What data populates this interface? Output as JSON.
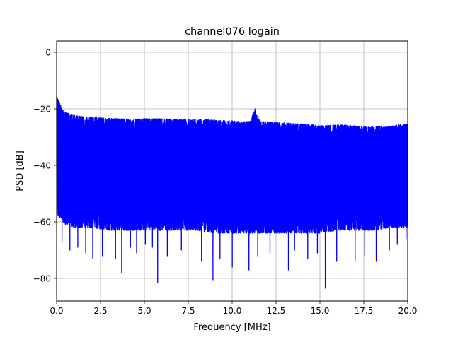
{
  "chart_data": {
    "type": "line",
    "title": "channel076 logain",
    "xlabel": "Frequency [MHz]",
    "ylabel": "PSD [dB]",
    "xlim": [
      0,
      20
    ],
    "ylim": [
      -88,
      4
    ],
    "xticks": [
      0,
      2.5,
      5,
      7.5,
      10,
      12.5,
      15,
      17.5,
      20
    ],
    "xtick_labels": [
      "0.0",
      "2.5",
      "5.0",
      "7.5",
      "10.0",
      "12.5",
      "15.0",
      "17.5",
      "20.0"
    ],
    "yticks": [
      0,
      -20,
      -40,
      -60,
      -80
    ],
    "ytick_labels": [
      "0",
      "−20",
      "−40",
      "−60",
      "−80"
    ],
    "grid": true,
    "line_color": "#0000ff",
    "series": [
      {
        "upper_envelope": {
          "x": [
            0.0,
            0.1,
            0.3,
            0.6,
            1.0,
            1.5,
            2.0,
            2.5,
            3.0,
            3.5,
            4.0,
            4.5,
            5.0,
            5.5,
            6.0,
            6.5,
            7.0,
            7.5,
            8.0,
            8.5,
            9.0,
            9.5,
            10.0,
            10.5,
            11.0,
            11.3,
            11.6,
            12.0,
            12.5,
            13.0,
            13.5,
            14.0,
            14.5,
            15.0,
            15.5,
            16.0,
            16.5,
            17.0,
            17.5,
            18.0,
            18.5,
            19.0,
            19.5,
            20.0
          ],
          "y": [
            -15.5,
            -17,
            -20,
            -21.5,
            -22.3,
            -22.8,
            -23.0,
            -23.2,
            -23.4,
            -23.5,
            -23.6,
            -23.6,
            -23.5,
            -23.5,
            -23.5,
            -23.6,
            -23.7,
            -23.8,
            -23.8,
            -23.8,
            -24.0,
            -24.2,
            -24.3,
            -24.4,
            -24.5,
            -20.0,
            -24.5,
            -24.6,
            -24.8,
            -25.0,
            -25.2,
            -25.4,
            -25.6,
            -26.0,
            -25.9,
            -25.7,
            -25.8,
            -26.0,
            -26.3,
            -26.4,
            -26.3,
            -26.2,
            -25.7,
            -25.5
          ]
        },
        "lower_envelope": {
          "x": [
            0.0,
            0.5,
            1.0,
            2.0,
            3.0,
            4.0,
            5.0,
            6.0,
            7.0,
            8.0,
            9.0,
            10.0,
            11.0,
            12.0,
            13.0,
            14.0,
            15.0,
            16.0,
            17.0,
            18.0,
            19.0,
            20.0
          ],
          "y": [
            -57,
            -61,
            -62,
            -62,
            -63,
            -63,
            -63,
            -63,
            -63,
            -63,
            -64,
            -64,
            -64,
            -64,
            -64,
            -64,
            -64,
            -63,
            -63,
            -63,
            -62,
            -62
          ]
        },
        "deep_dips": {
          "x": [
            0.3,
            0.75,
            1.2,
            1.65,
            2.05,
            2.6,
            3.35,
            3.7,
            4.2,
            4.55,
            5.05,
            5.45,
            5.75,
            6.3,
            7.1,
            8.25,
            8.9,
            9.3,
            10.0,
            10.95,
            11.45,
            12.15,
            13.2,
            13.55,
            14.3,
            14.85,
            15.3,
            15.95,
            17.0,
            17.55,
            18.2,
            18.95,
            19.4,
            19.9
          ],
          "y": [
            -67,
            -70,
            -69,
            -71,
            -73,
            -72,
            -73,
            -78,
            -69,
            -71,
            -68,
            -69,
            -81.5,
            -72,
            -70,
            -74,
            -80.5,
            -73,
            -76,
            -77,
            -72,
            -71,
            -77,
            -70,
            -73,
            -71,
            -83.5,
            -74,
            -74,
            -72,
            -74,
            -70,
            -68,
            -66
          ]
        }
      }
    ]
  }
}
